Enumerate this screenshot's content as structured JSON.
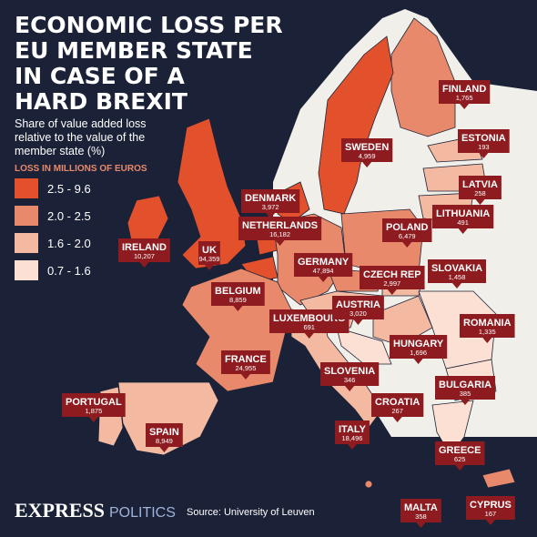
{
  "header": {
    "title_lines": [
      "ECONOMIC LOSS PER",
      "EU MEMBER STATE",
      "IN CASE OF A",
      "HARD BREXIT"
    ],
    "subtitle_lines": [
      "Share of value added loss",
      "relative to the value of the",
      "member state (%)"
    ]
  },
  "legend": {
    "title": "LOSS IN MILLIONS OF EUROS",
    "items": [
      {
        "label": "2.5 - 9.6",
        "color": "#e2502c"
      },
      {
        "label": "2.0 - 2.5",
        "color": "#e8896b"
      },
      {
        "label": "1.6 - 2.0",
        "color": "#f3b9a1"
      },
      {
        "label": "0.7 - 1.6",
        "color": "#fbe0d3"
      }
    ]
  },
  "countries": [
    {
      "name": "FINLAND",
      "loss": "1,765",
      "color": "#e8896b"
    },
    {
      "name": "SWEDEN",
      "loss": "4,959",
      "color": "#e2502c"
    },
    {
      "name": "ESTONIA",
      "loss": "193",
      "color": "#f3b9a1"
    },
    {
      "name": "LATVIA",
      "loss": "258",
      "color": "#f3b9a1"
    },
    {
      "name": "LITHUANIA",
      "loss": "491",
      "color": "#f3b9a1"
    },
    {
      "name": "DENMARK",
      "loss": "3,972",
      "color": "#e2502c"
    },
    {
      "name": "NETHERLANDS",
      "loss": "16,182",
      "color": "#e2502c"
    },
    {
      "name": "IRELAND",
      "loss": "10,207",
      "color": "#e2502c"
    },
    {
      "name": "UK",
      "loss": "94,359",
      "color": "#e2502c"
    },
    {
      "name": "POLAND",
      "loss": "6,479",
      "color": "#e8896b"
    },
    {
      "name": "GERMANY",
      "loss": "47,894",
      "color": "#e8896b"
    },
    {
      "name": "CZECH REP",
      "loss": "2,997",
      "color": "#e8896b"
    },
    {
      "name": "SLOVAKIA",
      "loss": "1,458",
      "color": "#f3b9a1"
    },
    {
      "name": "BELGIUM",
      "loss": "8,859",
      "color": "#e2502c"
    },
    {
      "name": "LUXEMBOURG",
      "loss": "691",
      "color": "#e8896b"
    },
    {
      "name": "AUSTRIA",
      "loss": "3,020",
      "color": "#f3b9a1"
    },
    {
      "name": "ROMANIA",
      "loss": "1,335",
      "color": "#fbe0d3"
    },
    {
      "name": "HUNGARY",
      "loss": "1,696",
      "color": "#f3b9a1"
    },
    {
      "name": "FRANCE",
      "loss": "24,955",
      "color": "#e8896b"
    },
    {
      "name": "SLOVENIA",
      "loss": "346",
      "color": "#f3b9a1"
    },
    {
      "name": "BULGARIA",
      "loss": "385",
      "color": "#fbe0d3"
    },
    {
      "name": "CROATIA",
      "loss": "267",
      "color": "#fbe0d3"
    },
    {
      "name": "PORTUGAL",
      "loss": "1,875",
      "color": "#f3b9a1"
    },
    {
      "name": "ITALY",
      "loss": "18,496",
      "color": "#f3b9a1"
    },
    {
      "name": "SPAIN",
      "loss": "8,949",
      "color": "#f3b9a1"
    },
    {
      "name": "GREECE",
      "loss": "625",
      "color": "#fbe0d3"
    },
    {
      "name": "MALTA",
      "loss": "358",
      "color": "#e8896b"
    },
    {
      "name": "CYPRUS",
      "loss": "167",
      "color": "#e8896b"
    }
  ],
  "footer": {
    "brand": "EXPRESS",
    "section": "POLITICS",
    "source": "Source: University of Leuven"
  }
}
